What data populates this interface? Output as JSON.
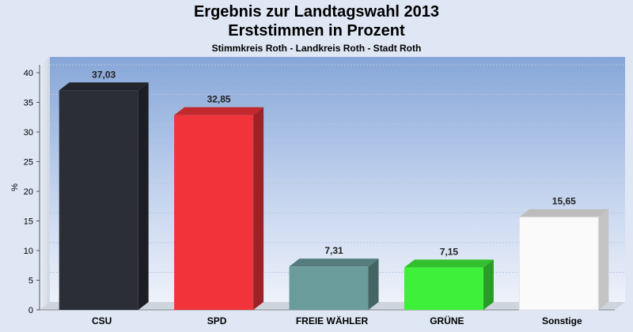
{
  "title": "Ergebnis zur Landtagswahl 2013",
  "subtitle": "Erststimmen in Prozent",
  "subsubtitle": "Stimmkreis Roth - Landkreis Roth - Stadt Roth",
  "chart_data": {
    "type": "bar",
    "ylabel": "%",
    "ylim": [
      0,
      40
    ],
    "yticks": [
      0,
      5,
      10,
      15,
      20,
      25,
      30,
      35,
      40
    ],
    "categories": [
      "CSU",
      "SPD",
      "FREIE WÄHLER",
      "GRÜNE",
      "Sonstige"
    ],
    "values": [
      37.03,
      32.85,
      7.31,
      7.15,
      15.65
    ],
    "value_labels": [
      "37,03",
      "32,85",
      "7,31",
      "7,15",
      "15,65"
    ],
    "colors": [
      "#2b2e36",
      "#f0343a",
      "#6a9c9c",
      "#3ff03a",
      "#fafafa"
    ],
    "grid": true,
    "legend": "none"
  }
}
